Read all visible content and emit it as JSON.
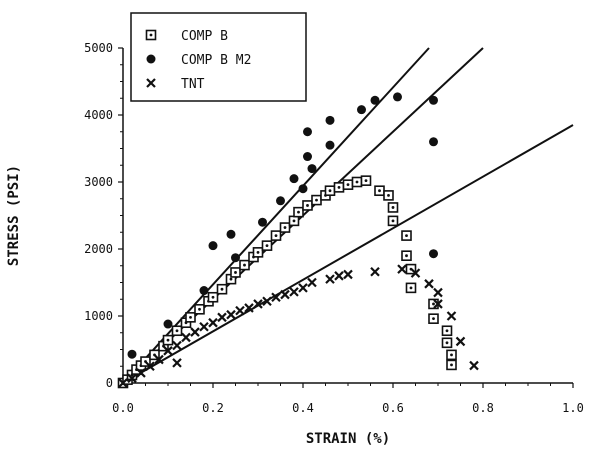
{
  "chart_data": {
    "type": "scatter",
    "title": "",
    "xlabel": "STRAIN (%)",
    "ylabel": "STRESS (PSI)",
    "xlim": [
      0.0,
      1.0
    ],
    "ylim": [
      0,
      5000
    ],
    "x_ticks": [
      0.0,
      0.2,
      0.4,
      0.6,
      0.8,
      1.0
    ],
    "x_tick_labels": [
      "0.0",
      "0.2",
      "0.4",
      "0.6",
      "0.8",
      "1.0"
    ],
    "y_ticks": [
      0,
      1000,
      2000,
      3000,
      4000,
      5000
    ],
    "y_tick_labels": [
      "0",
      "1000",
      "2000",
      "3000",
      "4000",
      "5000"
    ],
    "grid": false,
    "legend_position": "top-left",
    "series": [
      {
        "name": "COMP B",
        "marker": "dotted-square",
        "points": [
          [
            0.0,
            0
          ],
          [
            0.01,
            50
          ],
          [
            0.02,
            120
          ],
          [
            0.03,
            200
          ],
          [
            0.04,
            260
          ],
          [
            0.05,
            320
          ],
          [
            0.07,
            420
          ],
          [
            0.09,
            550
          ],
          [
            0.1,
            640
          ],
          [
            0.12,
            780
          ],
          [
            0.14,
            900
          ],
          [
            0.15,
            980
          ],
          [
            0.17,
            1100
          ],
          [
            0.19,
            1220
          ],
          [
            0.2,
            1280
          ],
          [
            0.22,
            1400
          ],
          [
            0.24,
            1550
          ],
          [
            0.25,
            1650
          ],
          [
            0.27,
            1760
          ],
          [
            0.29,
            1880
          ],
          [
            0.3,
            1950
          ],
          [
            0.32,
            2050
          ],
          [
            0.34,
            2200
          ],
          [
            0.36,
            2320
          ],
          [
            0.38,
            2420
          ],
          [
            0.39,
            2550
          ],
          [
            0.41,
            2650
          ],
          [
            0.43,
            2730
          ],
          [
            0.45,
            2800
          ],
          [
            0.46,
            2870
          ],
          [
            0.48,
            2920
          ],
          [
            0.5,
            2960
          ],
          [
            0.52,
            3000
          ],
          [
            0.54,
            3020
          ],
          [
            0.57,
            2870
          ],
          [
            0.59,
            2800
          ],
          [
            0.6,
            2620
          ],
          [
            0.6,
            2420
          ],
          [
            0.63,
            2200
          ],
          [
            0.63,
            1900
          ],
          [
            0.64,
            1700
          ],
          [
            0.64,
            1420
          ],
          [
            0.69,
            1180
          ],
          [
            0.69,
            960
          ],
          [
            0.72,
            780
          ],
          [
            0.72,
            600
          ],
          [
            0.73,
            420
          ],
          [
            0.73,
            270
          ]
        ]
      },
      {
        "name": "COMP B M2",
        "marker": "filled-circle",
        "points": [
          [
            0.02,
            430
          ],
          [
            0.1,
            880
          ],
          [
            0.18,
            1380
          ],
          [
            0.2,
            2050
          ],
          [
            0.24,
            2220
          ],
          [
            0.25,
            1870
          ],
          [
            0.31,
            2400
          ],
          [
            0.35,
            2720
          ],
          [
            0.38,
            3050
          ],
          [
            0.4,
            2900
          ],
          [
            0.41,
            3750
          ],
          [
            0.41,
            3380
          ],
          [
            0.42,
            3200
          ],
          [
            0.46,
            3920
          ],
          [
            0.46,
            3550
          ],
          [
            0.53,
            4080
          ],
          [
            0.56,
            4220
          ],
          [
            0.61,
            4270
          ],
          [
            0.69,
            4220
          ],
          [
            0.69,
            3600
          ],
          [
            0.69,
            1930
          ]
        ]
      },
      {
        "name": "TNT",
        "marker": "cross",
        "points": [
          [
            0.0,
            0
          ],
          [
            0.02,
            70
          ],
          [
            0.04,
            150
          ],
          [
            0.06,
            250
          ],
          [
            0.08,
            350
          ],
          [
            0.1,
            480
          ],
          [
            0.12,
            300
          ],
          [
            0.12,
            560
          ],
          [
            0.14,
            680
          ],
          [
            0.16,
            760
          ],
          [
            0.18,
            840
          ],
          [
            0.2,
            900
          ],
          [
            0.22,
            980
          ],
          [
            0.24,
            1020
          ],
          [
            0.26,
            1080
          ],
          [
            0.28,
            1120
          ],
          [
            0.3,
            1180
          ],
          [
            0.32,
            1220
          ],
          [
            0.34,
            1280
          ],
          [
            0.36,
            1320
          ],
          [
            0.38,
            1360
          ],
          [
            0.4,
            1420
          ],
          [
            0.42,
            1500
          ],
          [
            0.46,
            1550
          ],
          [
            0.48,
            1600
          ],
          [
            0.5,
            1620
          ],
          [
            0.56,
            1660
          ],
          [
            0.62,
            1700
          ],
          [
            0.65,
            1640
          ],
          [
            0.68,
            1480
          ],
          [
            0.7,
            1350
          ],
          [
            0.7,
            1180
          ],
          [
            0.73,
            1000
          ],
          [
            0.75,
            620
          ],
          [
            0.78,
            260
          ]
        ]
      }
    ],
    "trend_lines": [
      {
        "from": [
          0.0,
          0
        ],
        "to": [
          0.68,
          5000
        ]
      },
      {
        "from": [
          0.0,
          0
        ],
        "to": [
          0.8,
          5000
        ]
      },
      {
        "from": [
          0.0,
          0
        ],
        "to": [
          1.0,
          3850
        ]
      }
    ]
  }
}
